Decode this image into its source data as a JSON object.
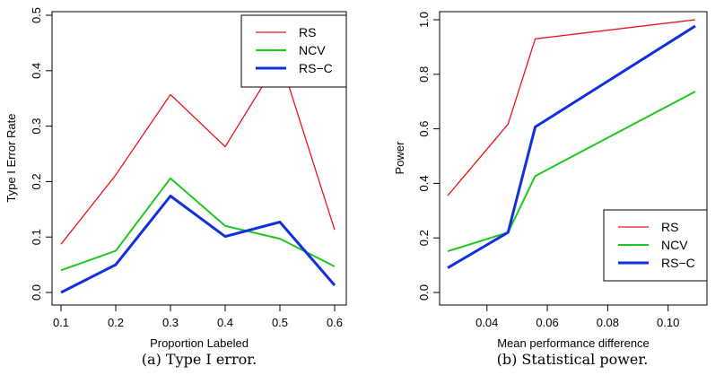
{
  "chart_data": [
    {
      "type": "line",
      "caption": "(a) Type I error.",
      "xlabel": "Proportion Labeled",
      "ylabel": "Type I Error Rate",
      "xlim": [
        0.1,
        0.6
      ],
      "ylim": [
        0.0,
        0.5
      ],
      "xticks": [
        "0.1",
        "0.2",
        "0.3",
        "0.4",
        "0.5",
        "0.6"
      ],
      "yticks": [
        "0.0",
        "0.1",
        "0.2",
        "0.3",
        "0.4",
        "0.5"
      ],
      "legend_position": "top-right",
      "x": [
        0.1,
        0.2,
        0.3,
        0.4,
        0.5,
        0.6
      ],
      "series": [
        {
          "name": "RS",
          "color": "#e8141c",
          "width": "thin",
          "values": [
            0.087,
            0.212,
            0.357,
            0.263,
            0.423,
            0.113
          ]
        },
        {
          "name": "NCV",
          "color": "#1ec81e",
          "width": "medium",
          "values": [
            0.04,
            0.075,
            0.206,
            0.12,
            0.097,
            0.047
          ]
        },
        {
          "name": "RS−C",
          "color": "#1030e0",
          "width": "thick",
          "values": [
            0.0,
            0.05,
            0.174,
            0.101,
            0.127,
            0.013
          ]
        }
      ]
    },
    {
      "type": "line",
      "caption": "(b) Statistical power.",
      "xlabel": "Mean performance difference",
      "ylabel": "Power",
      "xlim": [
        0.027,
        0.109
      ],
      "ylim": [
        0.0,
        1.0
      ],
      "xticks": [
        "0.04",
        "0.06",
        "0.08",
        "0.10"
      ],
      "yticks": [
        "0.0",
        "0.2",
        "0.4",
        "0.6",
        "0.8",
        "1.0"
      ],
      "legend_position": "bottom-right",
      "x": [
        0.027,
        0.047,
        0.056,
        0.109
      ],
      "series": [
        {
          "name": "RS",
          "color": "#e8141c",
          "width": "thin",
          "values": [
            0.355,
            0.617,
            0.93,
            1.0
          ]
        },
        {
          "name": "NCV",
          "color": "#1ec81e",
          "width": "medium",
          "values": [
            0.151,
            0.22,
            0.427,
            0.737
          ]
        },
        {
          "name": "RS−C",
          "color": "#1030e0",
          "width": "thick",
          "values": [
            0.09,
            0.22,
            0.607,
            0.977
          ]
        }
      ]
    }
  ]
}
